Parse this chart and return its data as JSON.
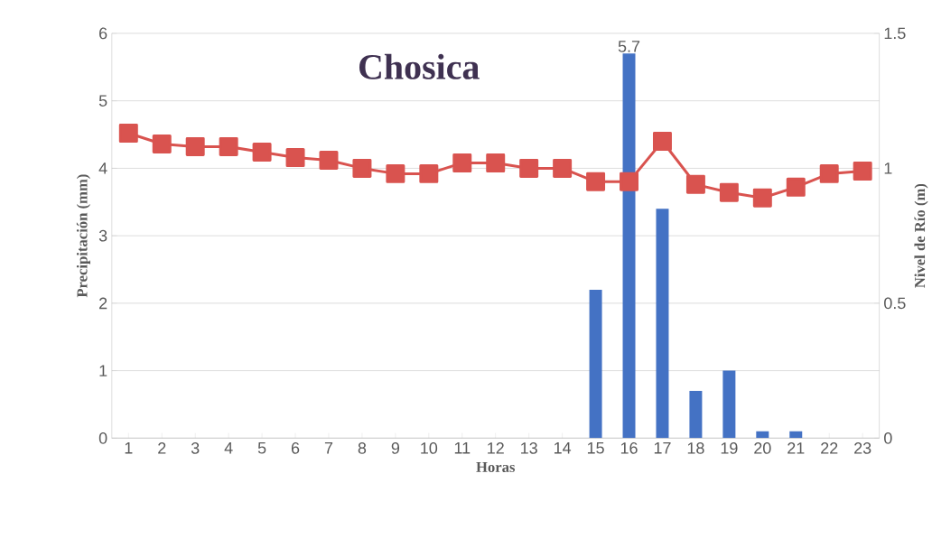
{
  "chart_data": {
    "type": "bar",
    "title": "Chosica",
    "xlabel": "Horas",
    "ylabel": "Precipitación (mm)",
    "y2label": "Nivel de Río (m)",
    "categories": [
      "1",
      "2",
      "3",
      "4",
      "5",
      "6",
      "7",
      "8",
      "9",
      "10",
      "11",
      "12",
      "13",
      "14",
      "15",
      "16",
      "17",
      "18",
      "19",
      "20",
      "21",
      "22",
      "23"
    ],
    "series": [
      {
        "color": "#4472c4",
        "values": [
          0,
          0,
          0,
          0,
          0,
          0,
          0,
          0,
          0,
          0,
          0,
          0,
          0,
          0,
          2.2,
          5.7,
          3.4,
          0.7,
          1.0,
          0.1,
          0.1,
          0,
          0
        ],
        "value_labels": [
          null,
          null,
          null,
          null,
          null,
          null,
          null,
          null,
          null,
          null,
          null,
          null,
          null,
          null,
          null,
          "5.7",
          null,
          null,
          null,
          null,
          null,
          null,
          null
        ]
      },
      {
        "type": "line",
        "axis": "y2",
        "color": "#d9534f",
        "values": [
          1.13,
          1.09,
          1.08,
          1.08,
          1.06,
          1.04,
          1.03,
          1.0,
          0.98,
          0.98,
          1.02,
          1.02,
          1.0,
          1.0,
          0.95,
          0.95,
          1.1,
          0.94,
          0.91,
          0.89,
          0.93,
          0.98,
          0.99
        ]
      }
    ],
    "ylim": [
      0,
      6
    ],
    "yticks": [
      0,
      1,
      2,
      3,
      4,
      5,
      6
    ],
    "y2lim": [
      0,
      1.5
    ],
    "y2ticks": [
      0,
      0.5,
      1,
      1.5
    ],
    "grid": "y",
    "marker": "square",
    "line_style": "solid"
  }
}
